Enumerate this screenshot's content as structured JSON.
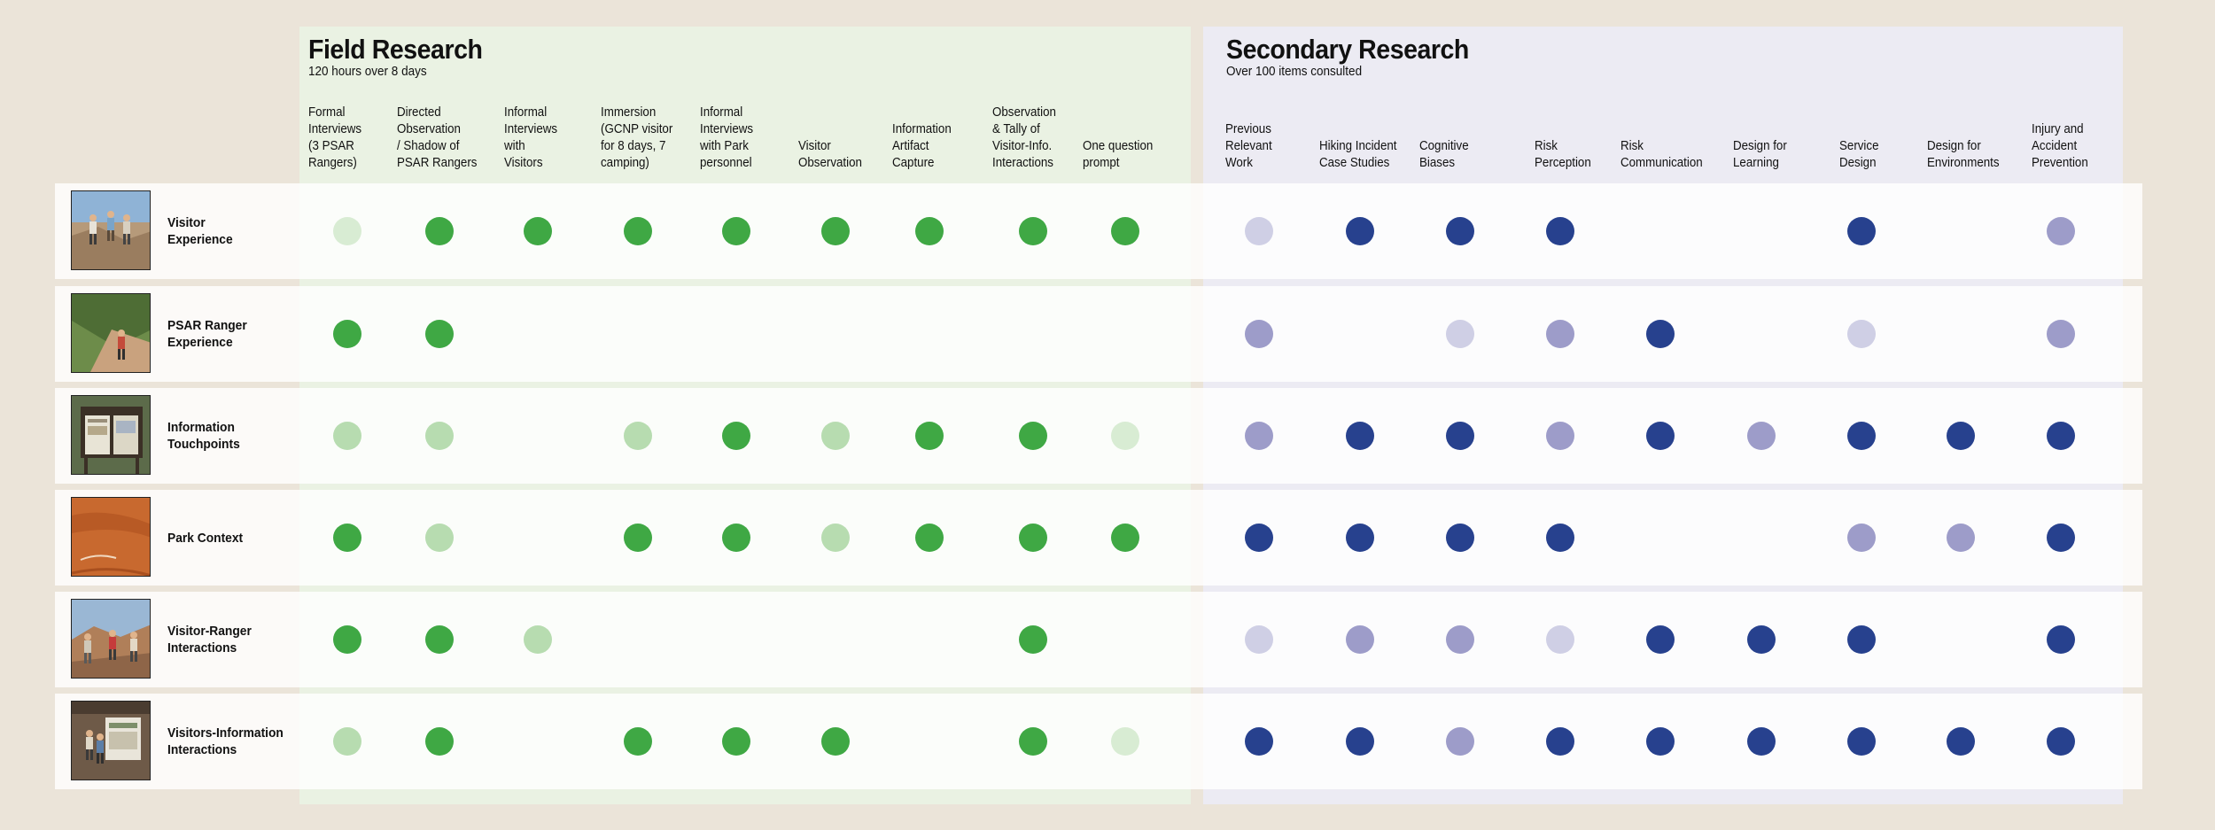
{
  "colors": {
    "field_strong": "#3fa844",
    "field_medium": "#b7dcb0",
    "field_light": "#d8ecd3",
    "secondary_strong": "#27418e",
    "secondary_medium": "#9d9cc9",
    "secondary_light": "#cfcfe5"
  },
  "field": {
    "title": "Field Research",
    "subtitle": "120 hours over 8 days",
    "columns": [
      "Formal\nInterviews\n(3 PSAR\nRangers)",
      "Directed\nObservation\n/ Shadow  of\nPSAR Rangers",
      "Informal\nInterviews\nwith\nVisitors",
      "Immersion\n(GCNP visitor\nfor 8 days, 7\ncamping)",
      "Informal\nInterviews\nwith Park\npersonnel",
      "Visitor\nObservation",
      "Information\nArtifact\nCapture",
      "Observation\n& Tally of\nVisitor-Info.\nInteractions",
      "One question\nprompt"
    ]
  },
  "secondary": {
    "title": "Secondary Research",
    "subtitle": "Over 100 items consulted",
    "columns": [
      "Previous\nRelevant\nWork",
      "Hiking Incident\nCase Studies",
      "Cognitive\nBiases",
      "Risk\nPerception",
      "Risk\nCommunication",
      "Design for\nLearning",
      "Service\nDesign",
      "Design for\nEnvironments",
      "Injury and\nAccident\nPrevention"
    ]
  },
  "rows": [
    {
      "label": "Visitor\nExperience",
      "photo": "hikers-on-trail",
      "field": [
        1,
        3,
        3,
        3,
        3,
        3,
        3,
        3,
        3
      ],
      "secondary": [
        1,
        3,
        3,
        3,
        0,
        0,
        3,
        0,
        2
      ]
    },
    {
      "label": "PSAR Ranger\nExperience",
      "photo": "ranger-on-trail",
      "field": [
        3,
        3,
        0,
        0,
        0,
        0,
        0,
        0,
        0
      ],
      "secondary": [
        2,
        0,
        1,
        2,
        3,
        0,
        1,
        0,
        2
      ]
    },
    {
      "label": "Information\nTouchpoints",
      "photo": "trailhead-signboard",
      "field": [
        2,
        2,
        0,
        2,
        3,
        2,
        3,
        3,
        1
      ],
      "secondary": [
        2,
        3,
        3,
        2,
        3,
        2,
        3,
        3,
        3
      ]
    },
    {
      "label": "Park Context",
      "photo": "red-rock-ground",
      "field": [
        3,
        2,
        0,
        3,
        3,
        2,
        3,
        3,
        3
      ],
      "secondary": [
        3,
        3,
        3,
        3,
        0,
        0,
        2,
        2,
        3
      ]
    },
    {
      "label": "Visitor-Ranger\nInteractions",
      "photo": "ranger-with-visitors",
      "field": [
        3,
        3,
        2,
        0,
        0,
        0,
        0,
        3,
        0
      ],
      "secondary": [
        1,
        2,
        2,
        1,
        3,
        3,
        3,
        0,
        3
      ]
    },
    {
      "label": "Visitors-Information\nInteractions",
      "photo": "visitors-at-kiosk",
      "field": [
        2,
        3,
        0,
        3,
        3,
        3,
        0,
        3,
        1
      ],
      "secondary": [
        3,
        3,
        2,
        3,
        3,
        3,
        3,
        3,
        3
      ]
    }
  ]
}
